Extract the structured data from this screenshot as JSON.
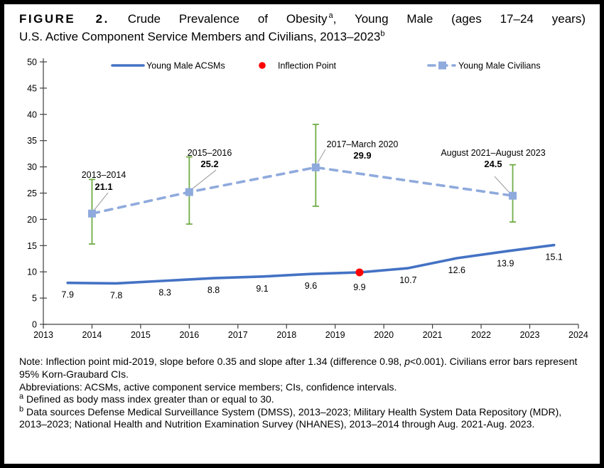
{
  "title": {
    "figure_label": "FIGURE 2.",
    "seg1": "Crude Prevalence of Obesity",
    "sup_a": "a",
    "seg2": ", Young Male (ages 17–24 years)",
    "line2": "U.S. Active Component Service Members and Civilians, 2013–2023",
    "sup_b": "b"
  },
  "legend": {
    "acsm_label": "Young Male ACSMs",
    "inflection_label": "Inflection Point",
    "civilian_label": "Young Male Civilians"
  },
  "chart_data": {
    "type": "line",
    "title": "Crude Prevalence of Obesity, Young Male (ages 17-24 years) U.S. Active Component Service Members and Civilians, 2013-2023",
    "xlabel": "",
    "ylabel": "",
    "xlim": [
      2013,
      2024
    ],
    "ylim": [
      0,
      50
    ],
    "grid": false,
    "legend_position": "top",
    "x_ticks": [
      2013,
      2014,
      2015,
      2016,
      2017,
      2018,
      2019,
      2020,
      2021,
      2022,
      2023,
      2024
    ],
    "y_ticks": [
      0,
      5,
      10,
      15,
      20,
      25,
      30,
      35,
      40,
      45,
      50
    ],
    "series": [
      {
        "name": "Young Male ACSMs",
        "style": "solid",
        "color": "#4472C4",
        "x": [
          2013.5,
          2014.5,
          2015.5,
          2016.5,
          2017.5,
          2018.5,
          2019.5,
          2020.5,
          2021.5,
          2022.5,
          2023.5
        ],
        "values": [
          7.9,
          7.8,
          8.3,
          8.8,
          9.1,
          9.6,
          9.9,
          10.7,
          12.6,
          13.9,
          15.1
        ]
      },
      {
        "name": "Young Male Civilians",
        "style": "dashed",
        "color": "#8FAADC",
        "marker": "square",
        "error_bar_color": "#70AD47",
        "error_bars": "95% Korn-Graubard CIs",
        "points": [
          {
            "period": "2013–2014",
            "x": 2014.0,
            "value": 21.1,
            "ci_low": 15.3,
            "ci_high": 27.6
          },
          {
            "period": "2015–2016",
            "x": 2016.0,
            "value": 25.2,
            "ci_low": 19.1,
            "ci_high": 31.9
          },
          {
            "period": "2017–March 2020",
            "x": 2018.6,
            "value": 29.9,
            "ci_low": 22.5,
            "ci_high": 38.1
          },
          {
            "period": "August 2021–August 2023",
            "x": 2022.65,
            "value": 24.5,
            "ci_low": 19.5,
            "ci_high": 30.4
          }
        ]
      }
    ],
    "inflection_point": {
      "x": 2019.5,
      "value": 9.9,
      "color": "#FF0000"
    }
  },
  "notes": {
    "note_prefix": "Note: Inflection point mid-2019, slope before 0.35 and slope after 1.34 (difference 0.98, ",
    "note_italic": "p",
    "note_suffix": "<0.001). Civilians error bars represent 95% Korn-Graubard CIs.",
    "abbreviations": "Abbreviations: ACSMs, active component service members; CIs, confidence intervals.",
    "footnote_a_sup": "a",
    "footnote_a": " Defined as body mass index greater than or equal to 30.",
    "footnote_b_sup": "b",
    "footnote_b": " Data sources Defense Medical Surveillance System (DMSS), 2013–2023; Military Health System Data Repository (MDR), 2013–2023; National Health and Nutrition Examination Survey (NHANES), 2013–2014 through Aug. 2021-Aug. 2023."
  },
  "colors": {
    "acsm_line": "#4472C4",
    "civilian_line": "#8FAADC",
    "error_bar": "#70AD47",
    "inflection_dot": "#FF0000",
    "axis": "#404040",
    "leader_line": "#A6A6A6"
  }
}
